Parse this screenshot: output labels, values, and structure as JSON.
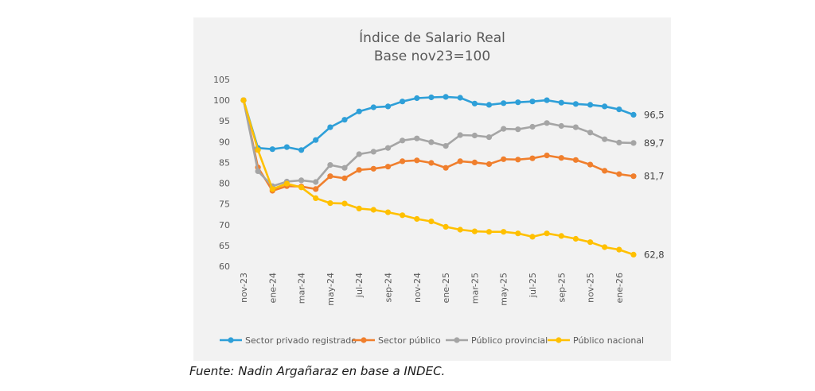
{
  "chart_data": {
    "type": "line",
    "title": "Índice de Salario Real",
    "subtitle": "Base nov23=100",
    "xlabel": "",
    "ylabel": "",
    "ylim": [
      60,
      105
    ],
    "yticks": [
      "105",
      "100",
      "95",
      "90",
      "85",
      "80",
      "75",
      "70",
      "65",
      "60"
    ],
    "grid": false,
    "legend_position": "bottom",
    "x": [
      "nov-23",
      "dic-23",
      "ene-24",
      "feb-24",
      "mar-24",
      "abr-24",
      "may-24",
      "jun-24",
      "jul-24",
      "ago-24",
      "sep-24",
      "oct-24",
      "nov-24",
      "dic-24",
      "ene-25",
      "feb-25",
      "mar-25",
      "abr-25",
      "may-25",
      "jun-25",
      "jul-25",
      "ago-25",
      "sep-25",
      "oct-25",
      "nov-25",
      "dic-25",
      "ene-26",
      "feb-26"
    ],
    "xtick_labels": [
      "nov-23",
      "ene-24",
      "mar-24",
      "may-24",
      "jul-24",
      "sep-24",
      "nov-24",
      "ene-25",
      "mar-25",
      "may-25",
      "jul-25",
      "sep-25",
      "nov-25",
      "ene-26"
    ],
    "series": [
      {
        "name": "Sector privado registrado",
        "color": "#2e9fd8",
        "end_label": "96,5",
        "values": [
          100,
          88.5,
          88.2,
          88.7,
          88.0,
          90.4,
          93.5,
          95.3,
          97.3,
          98.3,
          98.5,
          99.7,
          100.5,
          100.7,
          100.8,
          100.6,
          99.2,
          98.9,
          99.3,
          99.5,
          99.7,
          100.0,
          99.4,
          99.1,
          98.9,
          98.5,
          97.8,
          96.5
        ]
      },
      {
        "name": "Sector público",
        "color": "#f07f2d",
        "end_label": "81,7",
        "values": [
          100,
          83.8,
          78.2,
          79.3,
          79.2,
          78.6,
          81.7,
          81.2,
          83.2,
          83.5,
          84.0,
          85.3,
          85.5,
          84.9,
          83.7,
          85.3,
          85.0,
          84.6,
          85.8,
          85.7,
          86.0,
          86.7,
          86.1,
          85.6,
          84.5,
          83.0,
          82.2,
          81.7
        ]
      },
      {
        "name": "Público provincial",
        "color": "#a5a5a5",
        "end_label": "89,7",
        "values": [
          100,
          82.9,
          79.3,
          80.4,
          80.7,
          80.3,
          84.4,
          83.7,
          87.0,
          87.6,
          88.5,
          90.3,
          90.8,
          89.9,
          89.0,
          91.6,
          91.5,
          91.1,
          93.1,
          93.0,
          93.6,
          94.5,
          93.8,
          93.5,
          92.2,
          90.6,
          89.8,
          89.7
        ]
      },
      {
        "name": "Público nacional",
        "color": "#ffc000",
        "end_label": "62,8",
        "values": [
          100,
          88.0,
          78.6,
          79.9,
          79.0,
          76.4,
          75.2,
          75.1,
          73.9,
          73.6,
          73.0,
          72.3,
          71.4,
          70.8,
          69.5,
          68.8,
          68.4,
          68.3,
          68.3,
          67.9,
          67.1,
          67.9,
          67.3,
          66.6,
          65.8,
          64.6,
          64.0,
          62.8
        ]
      }
    ]
  },
  "source": "Fuente: Nadin Argañaraz en base a INDEC."
}
